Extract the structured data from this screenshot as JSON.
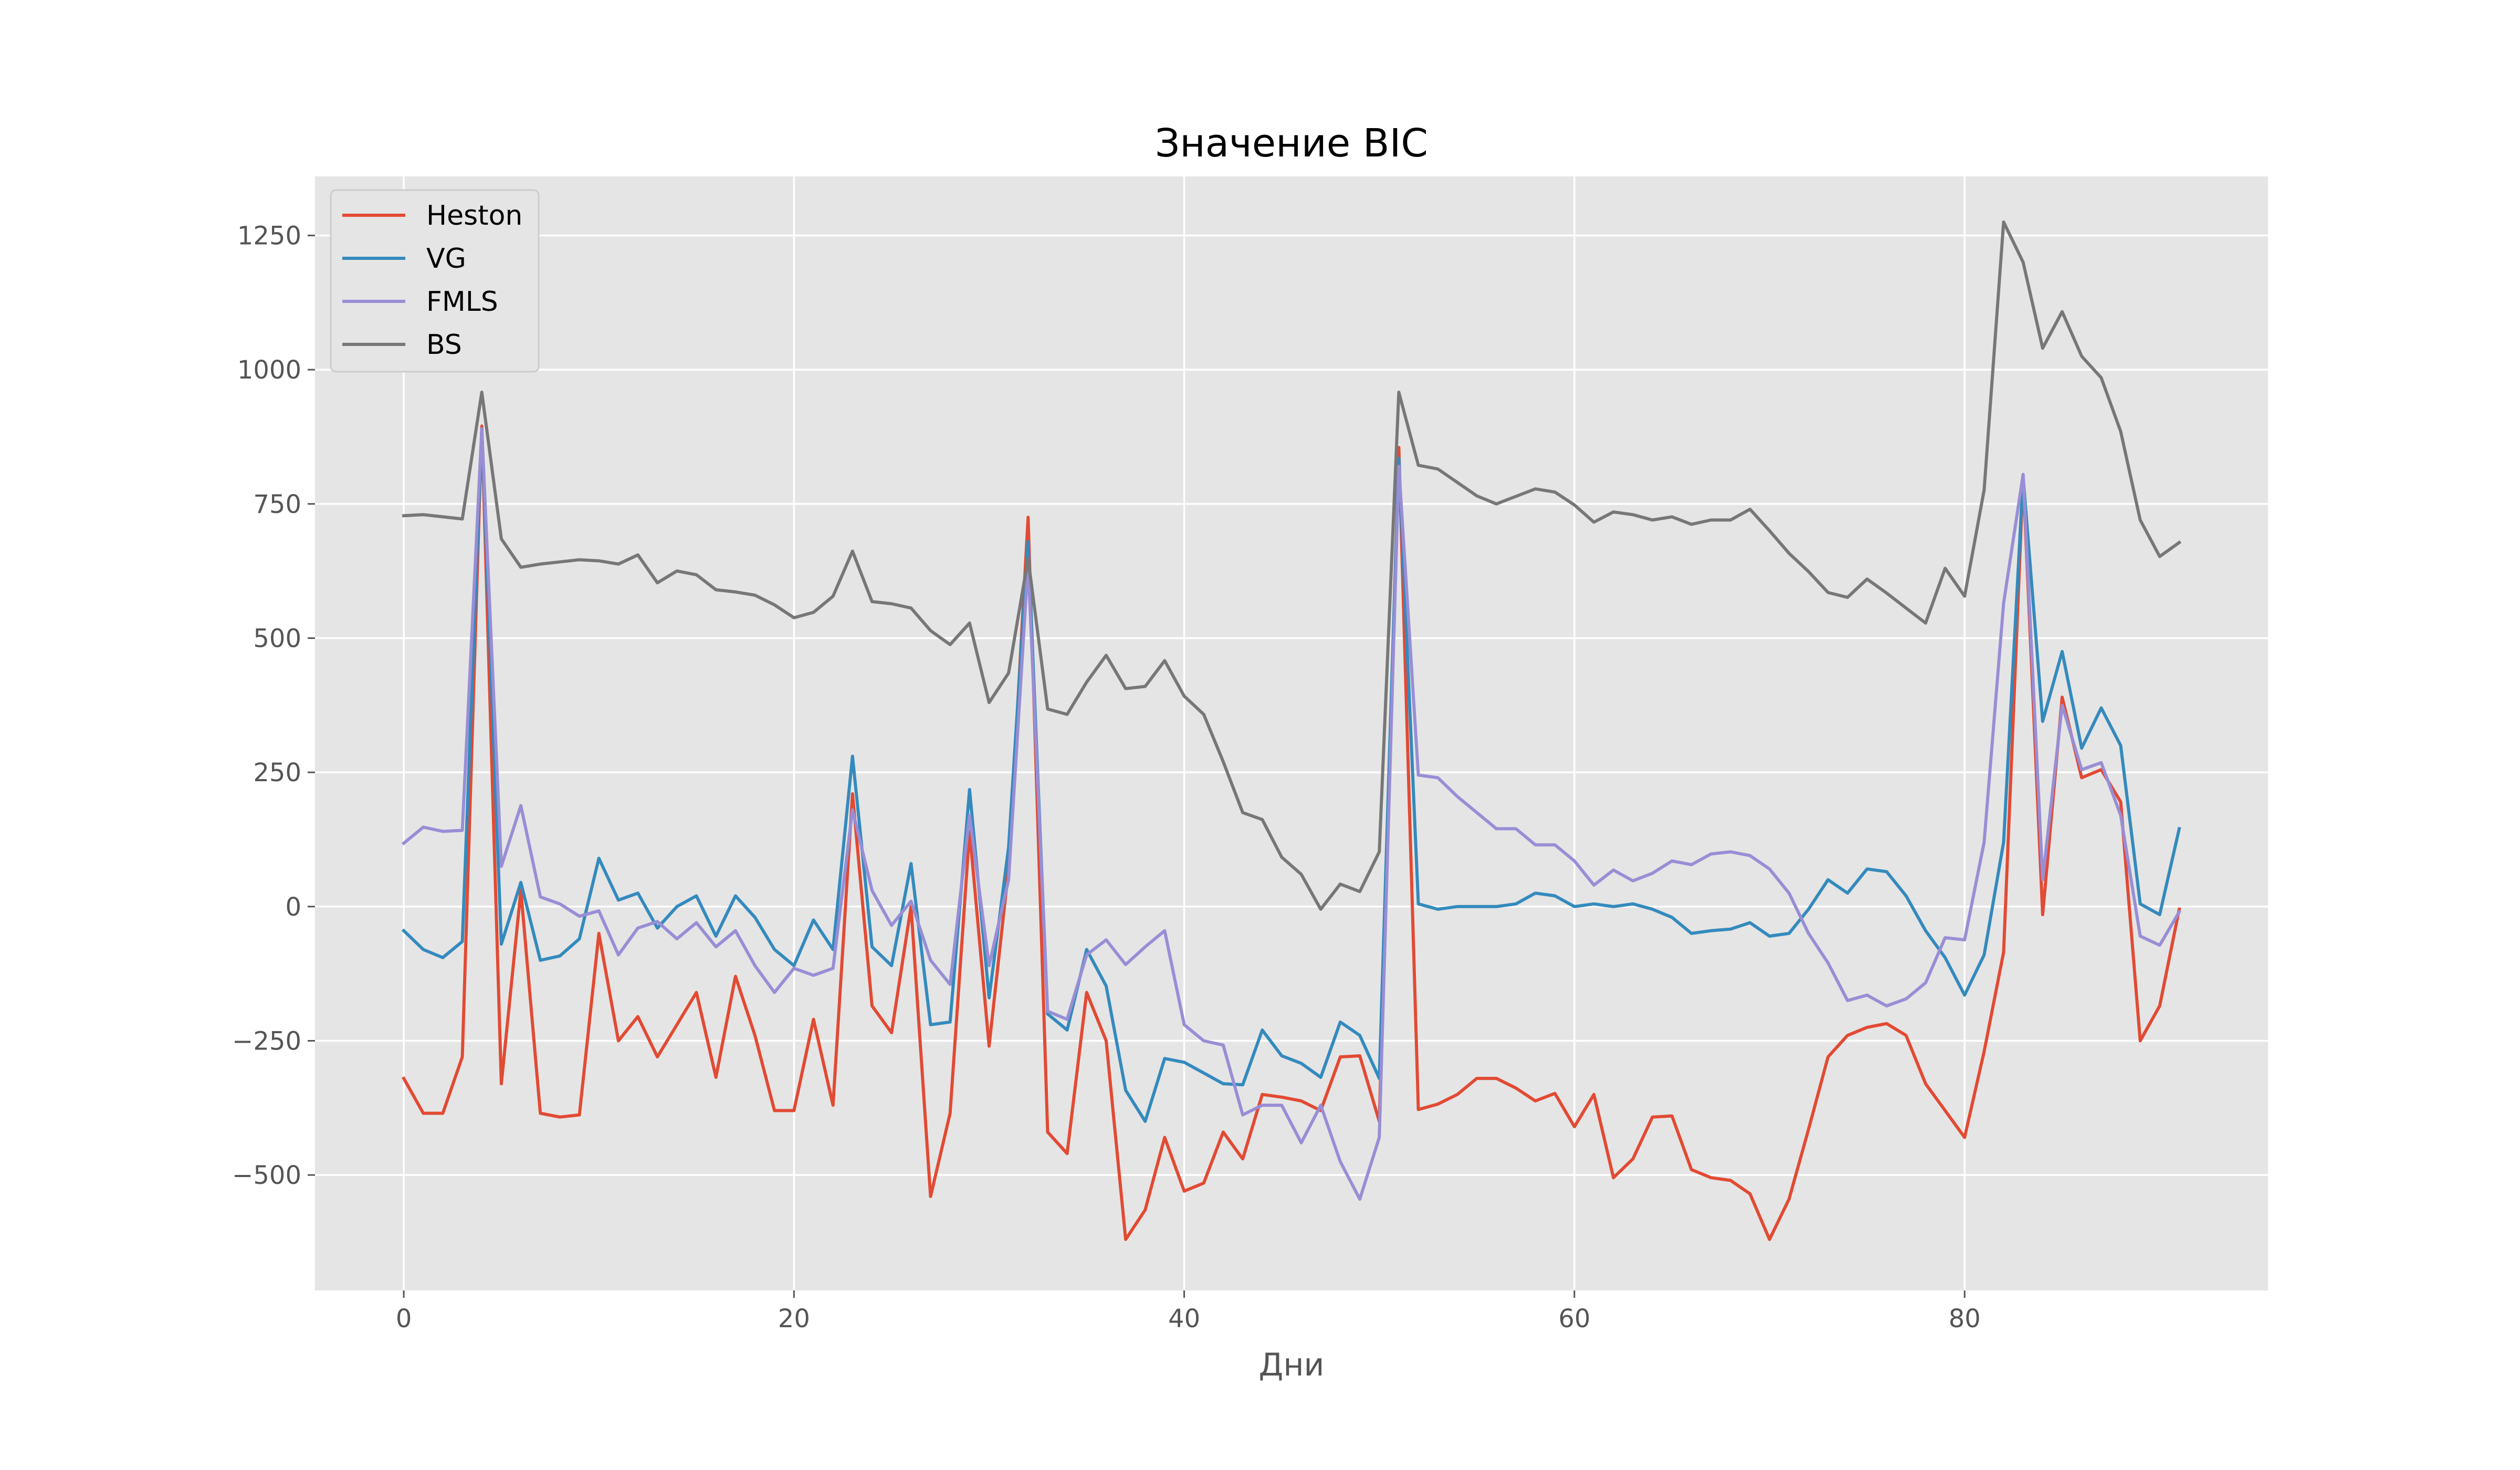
{
  "chart_data": {
    "type": "line",
    "title": "Значение BIC",
    "xlabel": "Дни",
    "ylabel": "",
    "xlim": [
      -4.55,
      95.55
    ],
    "ylim": [
      -715,
      1360
    ],
    "xticks": [
      0,
      20,
      40,
      60,
      80
    ],
    "yticks": [
      -500,
      -250,
      0,
      250,
      500,
      750,
      1000,
      1250
    ],
    "ytick_labels": [
      "−500",
      "−250",
      "0",
      "250",
      "500",
      "750",
      "1000",
      "1250"
    ],
    "grid": true,
    "legend_position": "top-left",
    "x": [
      0,
      1,
      2,
      3,
      4,
      5,
      6,
      7,
      8,
      9,
      10,
      11,
      12,
      13,
      14,
      15,
      16,
      17,
      18,
      19,
      20,
      21,
      22,
      23,
      24,
      25,
      26,
      27,
      28,
      29,
      30,
      31,
      32,
      33,
      34,
      35,
      36,
      37,
      38,
      39,
      40,
      41,
      42,
      43,
      44,
      45,
      46,
      47,
      48,
      49,
      50,
      51,
      52,
      53,
      54,
      55,
      56,
      57,
      58,
      59,
      60,
      61,
      62,
      63,
      64,
      65,
      66,
      67,
      68,
      69,
      70,
      71,
      72,
      73,
      74,
      75,
      76,
      77,
      78,
      79,
      80,
      81,
      82,
      83,
      84,
      85,
      86,
      87,
      88,
      89,
      90,
      91
    ],
    "series": [
      {
        "name": "Heston",
        "color": "#E24A33",
        "values": [
          -320,
          -385,
          -385,
          -280,
          895,
          -330,
          30,
          -385,
          -392,
          -388,
          -50,
          -250,
          -205,
          -280,
          -220,
          -160,
          -318,
          -130,
          -240,
          -380,
          -380,
          -210,
          -370,
          210,
          -185,
          -235,
          0,
          -540,
          -385,
          140,
          -260,
          70,
          725,
          -420,
          -460,
          -160,
          -250,
          -620,
          -565,
          -430,
          -530,
          -515,
          -420,
          -470,
          -350,
          -355,
          -362,
          -380,
          -280,
          -278,
          -400,
          855,
          -378,
          -368,
          -350,
          -320,
          -320,
          -338,
          -362,
          -348,
          -410,
          -350,
          -505,
          -470,
          -392,
          -390,
          -490,
          -505,
          -510,
          -535,
          -620,
          -545,
          -415,
          -280,
          -240,
          -225,
          -218,
          -240,
          -330,
          -380,
          -430,
          -270,
          -85,
          800,
          -15,
          390,
          240,
          255,
          195,
          -250,
          -185,
          -5
        ]
      },
      {
        "name": "VG",
        "color": "#348ABD",
        "values": [
          -45,
          -80,
          -95,
          -65,
          890,
          -70,
          45,
          -100,
          -92,
          -60,
          90,
          12,
          25,
          -40,
          0,
          20,
          -55,
          20,
          -20,
          -80,
          -110,
          -25,
          -80,
          280,
          -75,
          -110,
          80,
          -220,
          -215,
          218,
          -170,
          110,
          680,
          -200,
          -230,
          -80,
          -148,
          -342,
          -400,
          -283,
          -290,
          -310,
          -330,
          -332,
          -230,
          -278,
          -292,
          -318,
          -215,
          -240,
          -320,
          835,
          5,
          -5,
          0,
          0,
          0,
          5,
          25,
          20,
          0,
          5,
          0,
          5,
          -5,
          -20,
          -50,
          -45,
          -42,
          -30,
          -55,
          -50,
          -5,
          50,
          25,
          70,
          65,
          20,
          -45,
          -95,
          -165,
          -90,
          120,
          800,
          345,
          475,
          295,
          370,
          300,
          5,
          -15,
          145
        ]
      },
      {
        "name": "FMLS",
        "color": "#988ED5",
        "values": [
          118,
          148,
          140,
          142,
          890,
          75,
          188,
          18,
          5,
          -18,
          -8,
          -90,
          -40,
          -28,
          -60,
          -30,
          -75,
          -45,
          -110,
          -160,
          -115,
          -128,
          -115,
          180,
          30,
          -35,
          10,
          -100,
          -145,
          170,
          -110,
          50,
          640,
          -195,
          -210,
          -90,
          -62,
          -108,
          -75,
          -45,
          -220,
          -250,
          -258,
          -388,
          -370,
          -370,
          -440,
          -370,
          -475,
          -545,
          -430,
          820,
          245,
          240,
          205,
          175,
          145,
          145,
          115,
          115,
          85,
          40,
          68,
          48,
          62,
          85,
          78,
          98,
          102,
          95,
          70,
          25,
          -50,
          -105,
          -175,
          -165,
          -185,
          -172,
          -142,
          -58,
          -62,
          120,
          565,
          805,
          50,
          375,
          255,
          268,
          170,
          -55,
          -72,
          -10
        ]
      },
      {
        "name": "BS",
        "color": "#777777",
        "values": [
          728,
          730,
          726,
          722,
          958,
          685,
          632,
          638,
          642,
          646,
          644,
          638,
          655,
          603,
          625,
          618,
          590,
          586,
          580,
          562,
          538,
          548,
          578,
          662,
          568,
          564,
          556,
          514,
          488,
          528,
          380,
          435,
          648,
          368,
          358,
          418,
          468,
          406,
          410,
          458,
          392,
          358,
          270,
          175,
          162,
          92,
          60,
          -5,
          42,
          28,
          102,
          958,
          822,
          815,
          790,
          765,
          750,
          764,
          778,
          772,
          748,
          716,
          735,
          730,
          720,
          726,
          712,
          720,
          720,
          740,
          700,
          658,
          624,
          585,
          576,
          610,
          584,
          556,
          528,
          630,
          578,
          776,
          1275,
          1200,
          1040,
          1108,
          1025,
          985,
          885,
          720,
          652,
          678
        ]
      }
    ]
  }
}
